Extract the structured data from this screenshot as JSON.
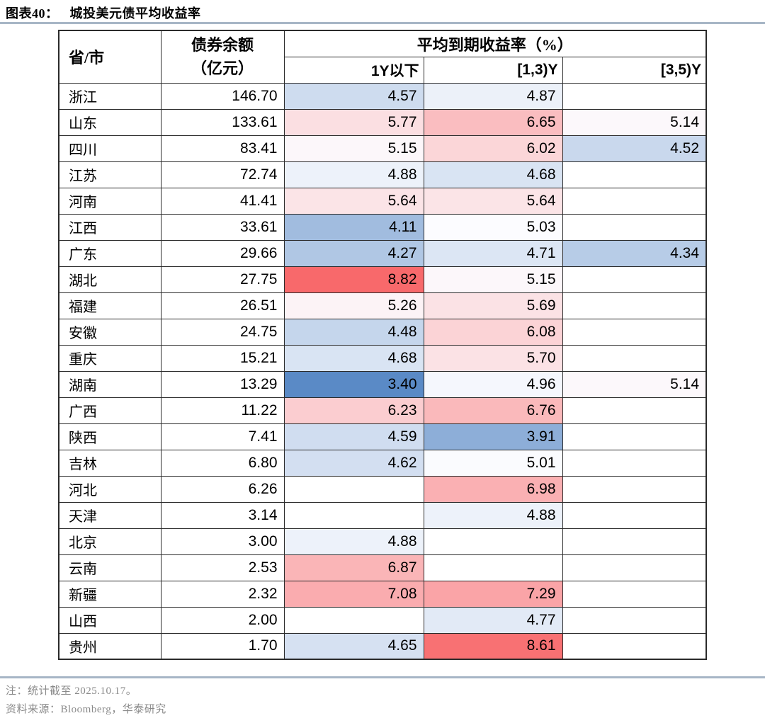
{
  "figure": {
    "title_prefix": "图表40：",
    "title": "城投美元债平均收益率",
    "note": "注：统计截至 2025.10.17。",
    "source": "资料来源：Bloomberg，华泰研究"
  },
  "table_header": {
    "province": "省/市",
    "balance_line1": "债券余额",
    "balance_line2": "（亿元）",
    "yield_group": "平均到期收益率（%）",
    "sub_1y": "1Y以下",
    "sub_1_3y": "[1,3)Y",
    "sub_3_5y": "[3,5)Y"
  },
  "colors": {
    "rule": "#a7b6c6",
    "table_border": "#2b2b2b",
    "note_gray": "#8a8a8a",
    "heat_low": "#5A8AC6",
    "heat_mid": "#FCFCFF",
    "heat_high": "#F8696B"
  },
  "chart_data": {
    "type": "table",
    "title": "城投美元债平均收益率",
    "columns": [
      "省/市",
      "债券余额（亿元）",
      "1Y以下",
      "[1,3)Y",
      "[3,5)Y"
    ],
    "group_header": "平均到期收益率（%）",
    "rows": [
      [
        "浙江",
        "146.70",
        "4.57",
        "4.87",
        ""
      ],
      [
        "山东",
        "133.61",
        "5.77",
        "6.65",
        "5.14"
      ],
      [
        "四川",
        "83.41",
        "5.15",
        "6.02",
        "4.52"
      ],
      [
        "江苏",
        "72.74",
        "4.88",
        "4.68",
        ""
      ],
      [
        "河南",
        "41.41",
        "5.64",
        "5.64",
        ""
      ],
      [
        "江西",
        "33.61",
        "4.11",
        "5.03",
        ""
      ],
      [
        "广东",
        "29.66",
        "4.27",
        "4.71",
        "4.34"
      ],
      [
        "湖北",
        "27.75",
        "8.82",
        "5.15",
        ""
      ],
      [
        "福建",
        "26.51",
        "5.26",
        "5.69",
        ""
      ],
      [
        "安徽",
        "24.75",
        "4.48",
        "6.08",
        ""
      ],
      [
        "重庆",
        "15.21",
        "4.68",
        "5.70",
        ""
      ],
      [
        "湖南",
        "13.29",
        "3.40",
        "4.96",
        "5.14"
      ],
      [
        "广西",
        "11.22",
        "6.23",
        "6.76",
        ""
      ],
      [
        "陕西",
        "7.41",
        "4.59",
        "3.91",
        ""
      ],
      [
        "吉林",
        "6.80",
        "4.62",
        "5.01",
        ""
      ],
      [
        "河北",
        "6.26",
        "",
        "6.98",
        ""
      ],
      [
        "天津",
        "3.14",
        "",
        "4.88",
        ""
      ],
      [
        "北京",
        "3.00",
        "4.88",
        "",
        ""
      ],
      [
        "云南",
        "2.53",
        "6.87",
        "",
        ""
      ],
      [
        "新疆",
        "2.32",
        "7.08",
        "7.29",
        ""
      ],
      [
        "山西",
        "2.00",
        "",
        "4.77",
        ""
      ],
      [
        "贵州",
        "1.70",
        "4.65",
        "8.61",
        ""
      ]
    ],
    "color_scale": {
      "min": 3.4,
      "mid": 5.03,
      "max": 8.82,
      "min_color": "#5A8AC6",
      "mid_color": "#FCFCFF",
      "max_color": "#F8696B"
    }
  }
}
